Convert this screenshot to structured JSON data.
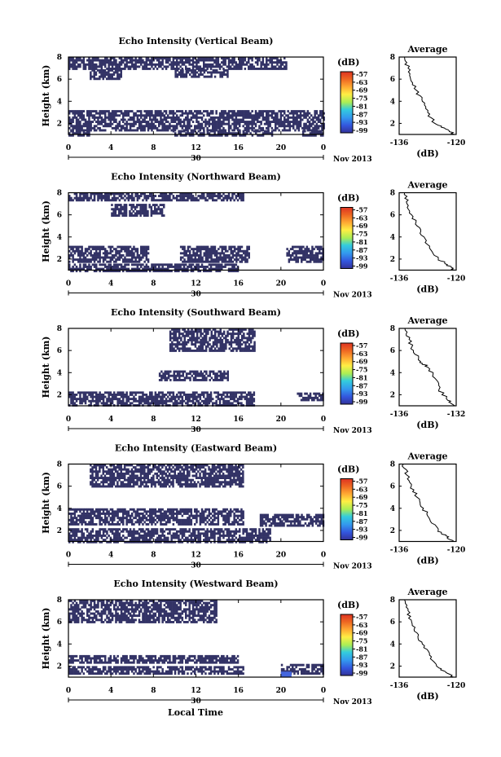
{
  "figure": {
    "ylabel": "Height (km)",
    "xlabel": "Local Time",
    "date_label": "Nov 2013",
    "colorbar_unit": "(dB)",
    "colorbar_ticks": [
      "-57",
      "-63",
      "-69",
      "-75",
      "-81",
      "-87",
      "-93",
      "-99"
    ],
    "colors": {
      "echo_fill": "#333366",
      "strong_echo": "#4466dd",
      "colorbar": [
        "#dd3322",
        "#ee6622",
        "#ffaa33",
        "#ffee44",
        "#aaee55",
        "#55dd88",
        "#33ccdd",
        "#3399ee",
        "#3355dd",
        "#333399"
      ]
    }
  },
  "chart_data": [
    {
      "type": "heatmap",
      "title": "Echo Intensity (Vertical Beam)",
      "x_ticks": [
        "0",
        "4",
        "8",
        "12",
        "16",
        "20",
        "0"
      ],
      "day_label": "30",
      "y_ticks": [
        "2",
        "4",
        "6",
        "8"
      ],
      "xlim": [
        0,
        24
      ],
      "ylim": [
        1,
        8
      ],
      "echo_regions": [
        {
          "t": [
            0,
            20.5
          ],
          "h": [
            6.9,
            8.0
          ]
        },
        {
          "t": [
            2,
            5
          ],
          "h": [
            6.0,
            6.9
          ]
        },
        {
          "t": [
            10,
            15
          ],
          "h": [
            6.2,
            6.9
          ]
        },
        {
          "t": [
            0,
            24
          ],
          "h": [
            1.4,
            3.2
          ]
        },
        {
          "t": [
            0,
            2
          ],
          "h": [
            1.0,
            1.4
          ]
        },
        {
          "t": [
            9.8,
            19.2
          ],
          "h": [
            1.0,
            1.4
          ]
        },
        {
          "t": [
            22,
            24
          ],
          "h": [
            1.0,
            1.4
          ]
        }
      ],
      "average_profile": {
        "title": "Average",
        "xlabel": "(dB)",
        "x_ticks": [
          "-136",
          "-120"
        ],
        "y_ticks": [
          "2",
          "4",
          "6",
          "8"
        ],
        "xlim": [
          -136,
          -120
        ],
        "ylim": [
          1,
          8
        ],
        "points": [
          [
            -134.5,
            8.0
          ],
          [
            -133.5,
            7.0
          ],
          [
            -132.8,
            6.0
          ],
          [
            -131.2,
            5.0
          ],
          [
            -129.5,
            4.0
          ],
          [
            -128.0,
            3.0
          ],
          [
            -126.0,
            2.0
          ],
          [
            -123.0,
            1.5
          ],
          [
            -120.5,
            1.0
          ]
        ]
      }
    },
    {
      "type": "heatmap",
      "title": "Echo Intensity (Northward Beam)",
      "x_ticks": [
        "0",
        "4",
        "8",
        "12",
        "16",
        "20",
        "0"
      ],
      "day_label": "30",
      "y_ticks": [
        "2",
        "4",
        "6",
        "8"
      ],
      "xlim": [
        0,
        24
      ],
      "ylim": [
        1,
        8
      ],
      "echo_regions": [
        {
          "t": [
            0,
            16.5
          ],
          "h": [
            7.3,
            8.0
          ]
        },
        {
          "t": [
            4,
            9
          ],
          "h": [
            6.0,
            7.0
          ]
        },
        {
          "t": [
            0,
            7.5
          ],
          "h": [
            1.8,
            3.2
          ]
        },
        {
          "t": [
            10.5,
            17
          ],
          "h": [
            1.8,
            3.2
          ]
        },
        {
          "t": [
            20.5,
            24
          ],
          "h": [
            1.8,
            3.2
          ]
        },
        {
          "t": [
            0,
            16
          ],
          "h": [
            1.0,
            1.6
          ]
        }
      ],
      "average_profile": {
        "title": "Average",
        "xlabel": "(dB)",
        "x_ticks": [
          "-136",
          "-120"
        ],
        "y_ticks": [
          "2",
          "4",
          "6",
          "8"
        ],
        "xlim": [
          -136,
          -120
        ],
        "ylim": [
          1,
          8
        ],
        "points": [
          [
            -134.5,
            8.0
          ],
          [
            -133.8,
            7.0
          ],
          [
            -132.5,
            6.0
          ],
          [
            -131.0,
            5.0
          ],
          [
            -129.0,
            4.0
          ],
          [
            -127.5,
            3.0
          ],
          [
            -125.0,
            2.0
          ],
          [
            -122.5,
            1.5
          ],
          [
            -120.5,
            1.0
          ]
        ]
      }
    },
    {
      "type": "heatmap",
      "title": "Echo Intensity (Southward Beam)",
      "x_ticks": [
        "0",
        "4",
        "8",
        "12",
        "16",
        "20",
        "0"
      ],
      "day_label": "30",
      "y_ticks": [
        "2",
        "4",
        "6",
        "8"
      ],
      "xlim": [
        0,
        24
      ],
      "ylim": [
        1,
        8
      ],
      "echo_regions": [
        {
          "t": [
            9.5,
            17.5
          ],
          "h": [
            6.0,
            8.0
          ]
        },
        {
          "t": [
            8.5,
            15
          ],
          "h": [
            3.3,
            4.2
          ]
        },
        {
          "t": [
            0,
            17.5
          ],
          "h": [
            1.0,
            2.3
          ]
        },
        {
          "t": [
            21.5,
            24
          ],
          "h": [
            1.5,
            2.2
          ]
        }
      ],
      "average_profile": {
        "title": "Average",
        "xlabel": "(dB)",
        "x_ticks": [
          "-136",
          "-132"
        ],
        "y_ticks": [
          "2",
          "4",
          "6",
          "8"
        ],
        "xlim": [
          -136,
          -132
        ],
        "ylim": [
          1,
          8
        ],
        "points": [
          [
            -135.6,
            8.0
          ],
          [
            -135.3,
            7.0
          ],
          [
            -135.0,
            6.0
          ],
          [
            -134.5,
            5.0
          ],
          [
            -134.0,
            4.5
          ],
          [
            -133.5,
            3.5
          ],
          [
            -133.2,
            2.5
          ],
          [
            -132.6,
            1.5
          ],
          [
            -132.1,
            1.0
          ]
        ]
      }
    },
    {
      "type": "heatmap",
      "title": "Echo Intensity (Eastward Beam)",
      "x_ticks": [
        "0",
        "4",
        "8",
        "12",
        "16",
        "20",
        "0"
      ],
      "day_label": "30",
      "y_ticks": [
        "2",
        "4",
        "6",
        "8"
      ],
      "xlim": [
        0,
        24
      ],
      "ylim": [
        1,
        8
      ],
      "echo_regions": [
        {
          "t": [
            2,
            16.5
          ],
          "h": [
            6.0,
            8.0
          ]
        },
        {
          "t": [
            0,
            16.5
          ],
          "h": [
            2.6,
            4.0
          ]
        },
        {
          "t": [
            18,
            24
          ],
          "h": [
            2.5,
            3.5
          ]
        },
        {
          "t": [
            0,
            19
          ],
          "h": [
            1.0,
            2.2
          ]
        }
      ],
      "average_profile": {
        "title": "Average",
        "xlabel": "(dB)",
        "x_ticks": [
          "-136",
          "-120"
        ],
        "y_ticks": [
          "2",
          "4",
          "6",
          "8"
        ],
        "xlim": [
          -136,
          -120
        ],
        "ylim": [
          1,
          8
        ],
        "points": [
          [
            -134.8,
            8.0
          ],
          [
            -133.8,
            7.0
          ],
          [
            -132.6,
            6.0
          ],
          [
            -131.0,
            5.0
          ],
          [
            -129.2,
            4.0
          ],
          [
            -127.4,
            3.0
          ],
          [
            -125.0,
            2.0
          ],
          [
            -122.8,
            1.5
          ],
          [
            -120.8,
            1.0
          ]
        ]
      }
    },
    {
      "type": "heatmap",
      "title": "Echo Intensity (Westward Beam)",
      "x_ticks": [
        "0",
        "4",
        "8",
        "12",
        "16",
        "20",
        "0"
      ],
      "day_label": "30",
      "y_ticks": [
        "2",
        "4",
        "6",
        "8"
      ],
      "xlim": [
        0,
        24
      ],
      "ylim": [
        1,
        8
      ],
      "echo_regions": [
        {
          "t": [
            0,
            14
          ],
          "h": [
            6.0,
            8.0
          ]
        },
        {
          "t": [
            0,
            16
          ],
          "h": [
            2.3,
            3.0
          ]
        },
        {
          "t": [
            0,
            16.5
          ],
          "h": [
            1.3,
            2.0
          ]
        },
        {
          "t": [
            20,
            24
          ],
          "h": [
            1.4,
            2.2
          ]
        }
      ],
      "strong_echo": {
        "t": [
          20,
          21
        ],
        "h": [
          1.0,
          1.5
        ]
      },
      "average_profile": {
        "title": "Average",
        "xlabel": "(dB)",
        "x_ticks": [
          "-136",
          "-120"
        ],
        "y_ticks": [
          "2",
          "4",
          "6",
          "8"
        ],
        "xlim": [
          -136,
          -120
        ],
        "ylim": [
          1,
          8
        ],
        "points": [
          [
            -134.5,
            8.0
          ],
          [
            -133.5,
            7.0
          ],
          [
            -132.5,
            6.0
          ],
          [
            -131.0,
            5.0
          ],
          [
            -129.5,
            4.0
          ],
          [
            -127.5,
            3.0
          ],
          [
            -125.5,
            2.0
          ],
          [
            -123.0,
            1.5
          ],
          [
            -120.8,
            1.0
          ]
        ]
      }
    }
  ]
}
